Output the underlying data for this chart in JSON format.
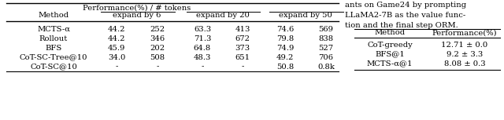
{
  "left_table": {
    "rows": [
      [
        "MCTS-α",
        "44.2",
        "252",
        "63.3",
        "413",
        "74.6",
        "569"
      ],
      [
        "Rollout",
        "44.2",
        "346",
        "71.3",
        "672",
        "79.8",
        "838"
      ],
      [
        "BFS",
        "45.9",
        "202",
        "64.8",
        "373",
        "74.9",
        "527"
      ],
      [
        "CoT-SC-Tree@10",
        "34.0",
        "508",
        "48.3",
        "651",
        "49.2",
        "706"
      ],
      [
        "CoT-SC@10",
        "-",
        "-",
        "-",
        "-",
        "50.8",
        "0.8k"
      ]
    ]
  },
  "right_table": {
    "rows": [
      [
        "CoT-greedy",
        "12.71 ± 0.0"
      ],
      [
        "BFS@1",
        "9.2 ± 3.3"
      ],
      [
        "MCTS-α@1",
        "8.08 ± 0.3"
      ]
    ]
  },
  "side_text": "ants on Game24 by prompting\nLLaMA2-7B as the value func-\ntion and the final step ORM.",
  "background_color": "#ffffff",
  "line_color": "#000000"
}
